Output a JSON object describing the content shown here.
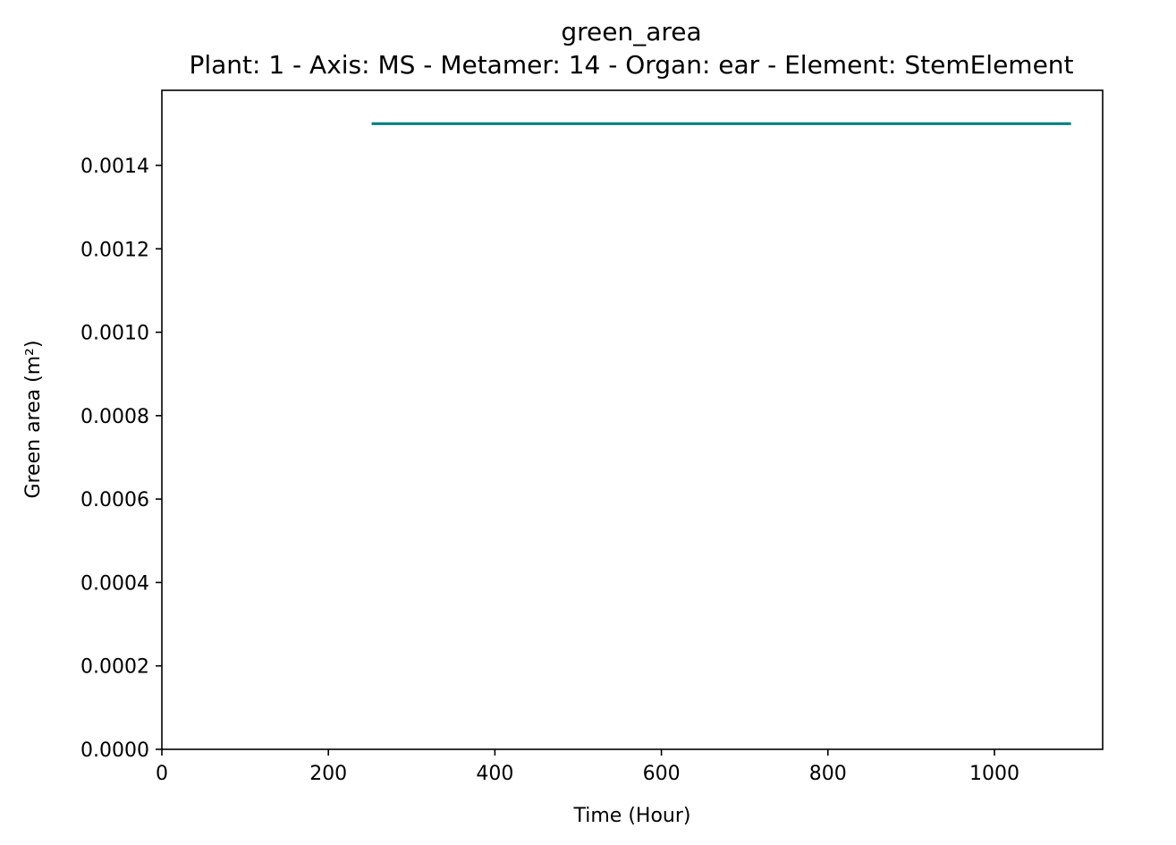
{
  "chart_data": {
    "type": "line",
    "title": "green_area",
    "subtitle": "Plant: 1 - Axis: MS - Metamer: 14 - Organ: ear - Element: StemElement",
    "xlabel": "Time (Hour)",
    "ylabel": "Green area (m²)",
    "xlim": [
      0,
      1130
    ],
    "ylim": [
      0,
      0.00158
    ],
    "xticks": [
      0,
      200,
      400,
      600,
      800,
      1000
    ],
    "yticks": [
      0.0,
      0.0002,
      0.0004,
      0.0006,
      0.0008,
      0.001,
      0.0012,
      0.0014
    ],
    "ytick_labels": [
      "0.0000",
      "0.0002",
      "0.0004",
      "0.0006",
      "0.0008",
      "0.0010",
      "0.0012",
      "0.0014"
    ],
    "grid": false,
    "series": [
      {
        "color": "#008080",
        "x": [
          252,
          1092
        ],
        "y": [
          0.0015,
          0.0015
        ]
      }
    ]
  }
}
